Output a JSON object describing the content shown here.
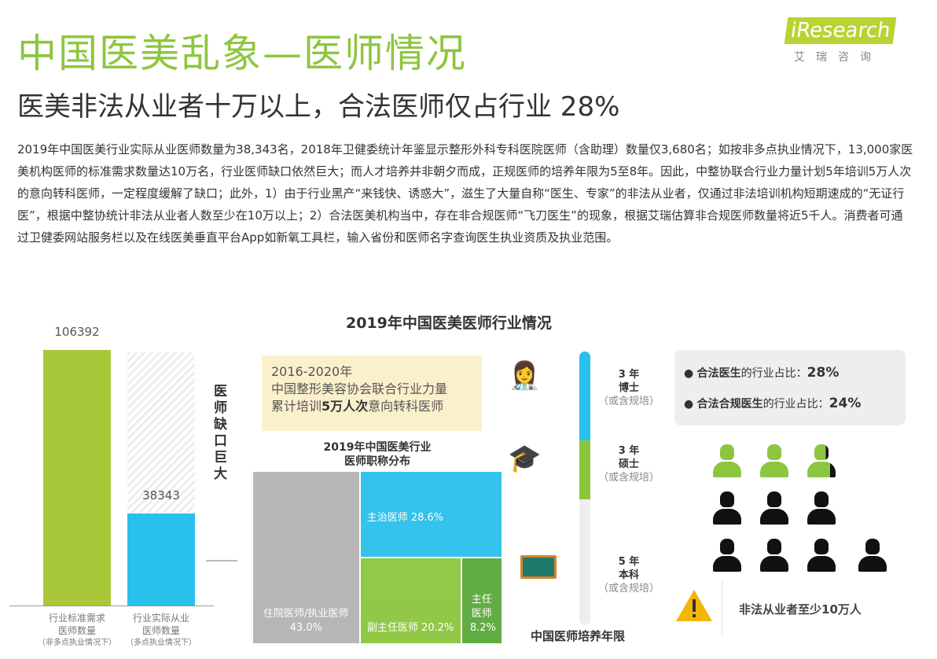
{
  "header": {
    "title": "中国医美乱象—医师情况",
    "subtitle": "医美非法从业者十万以上，合法医师仅占行业 28%",
    "logo_text": "iResearch",
    "logo_cn": "艾瑞咨询"
  },
  "paragraph": "2019年中国医美行业实际从业医师数量为38,343名，2018年卫健委统计年鉴显示整形外科专科医院医师（含助理）数量仅3,680名；如按非多点执业情况下，13,000家医美机构医师的标准需求数量达10万名，行业医师缺口依然巨大；而人才培养并非朝夕而成，正规医师的培养年限为5至8年。因此，中整协联合行业力量计划5年培训5万人次的意向转科医师，一定程度缓解了缺口；此外，1）由于行业黑产“来钱快、诱惑大”，滋生了大量自称“医生、专家”的非法从业者，仅通过非法培训机构短期速成的“无证行医”，根据中整协统计非法从业者人数至少在10万以上；2）合法医美机构当中，存在非合规医师“飞刀医生”的现象，根据艾瑞估算非合规医师数量将近5千人。消费者可通过卫健委网站服务栏以及在线医美垂直平台App如新氧工具栏，输入省份和医师名字查询医生执业资质及执业范围。",
  "infographic_title": "2019年中国医美医师行业情况",
  "gap_label": "医师缺口巨大",
  "training_box": {
    "line1": "2016-2020年",
    "line2": "中国整形美容协会联合行业力量",
    "line3_pre": "累计培训",
    "line3_bold": "5万人次",
    "line3_post": "意向转科医师"
  },
  "chart_data": [
    {
      "type": "bar",
      "categories": [
        "行业标准需求医师数量（非多点执业情况下）",
        "行业实际从业医师数量（多点执业情况下）"
      ],
      "labels": [
        {
          "l1": "行业标准需求",
          "l2": "医师数量",
          "l3": "（非多点执业情况下）"
        },
        {
          "l1": "行业实际从业",
          "l2": "医师数量",
          "l3": "（多点执业情况下）"
        }
      ],
      "values": [
        106392,
        38343
      ],
      "value_labels": [
        "106392",
        "38343"
      ],
      "colors": [
        "#a8c83a",
        "#29c0ec"
      ]
    },
    {
      "type": "treemap",
      "title": "2019年中国医美行业医师职称分布",
      "title_l1": "2019年中国医美行业",
      "title_l2": "医师职称分布",
      "items": [
        {
          "name": "住院医师/执业医师",
          "value": 43.0,
          "label": "43.0%",
          "color": "#b3b3b3"
        },
        {
          "name": "主治医师",
          "value": 28.6,
          "label": "28.6%",
          "color": "#29c0ec"
        },
        {
          "name": "副主任医师",
          "value": 20.2,
          "label": "20.2%",
          "color": "#8cc63f"
        },
        {
          "name": "主任医师",
          "value": 8.2,
          "label": "8.2%",
          "color": "#5aa83a"
        }
      ]
    }
  ],
  "training_years": {
    "title": "中国医师培养年限",
    "stages": [
      {
        "years": "3 年",
        "degree": "博士",
        "note": "（或含规培）",
        "color": "#29c0ec"
      },
      {
        "years": "3 年",
        "degree": "硕士",
        "note": "（或含规培）",
        "color": "#8cc63f"
      },
      {
        "years": "5 年",
        "degree": "本科",
        "note": "（或含规培）",
        "color": "#eeeeee"
      }
    ]
  },
  "share_box": {
    "items": [
      {
        "bold": "合法医生",
        "text": "的行业占比：",
        "value": "28%"
      },
      {
        "bold": "合法合规医生",
        "text": "的行业占比：",
        "value": "24%"
      }
    ]
  },
  "doctor_icons": {
    "total": 10,
    "legal_fraction": 0.28,
    "legal_color": "#8cc63f",
    "illegal_color": "#111111"
  },
  "warning": {
    "text": "非法从业者至少10万人",
    "color": "#f2b705"
  }
}
